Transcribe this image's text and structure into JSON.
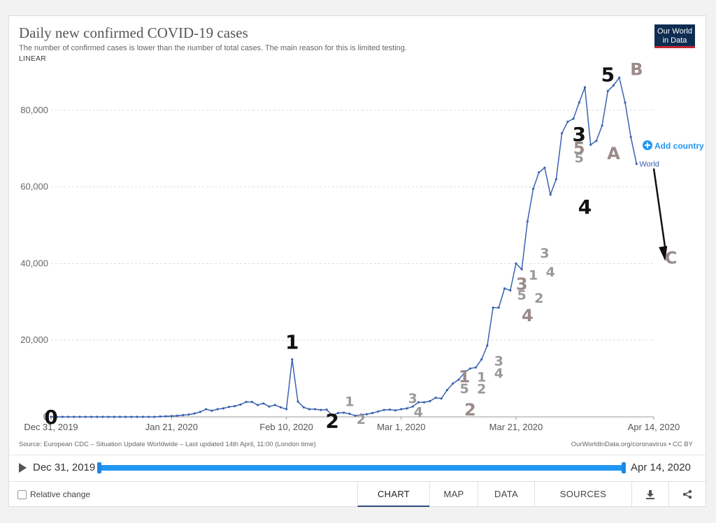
{
  "title": "Daily new confirmed COVID-19 cases",
  "subtitle": "The number of confirmed cases is lower than the number of total cases. The main reason for this is limited testing.",
  "scale_label": "LINEAR",
  "logo": {
    "line1": "Our World",
    "line2": "in Data"
  },
  "add_country_label": "Add country",
  "source": "Source: European CDC – Situation Update Worldwide – Last updated 14th April, 11:00 (London time)",
  "credit": "OurWorldInData.org/coronavirus • CC BY",
  "timeline": {
    "start": "Dec 31, 2019",
    "end": "Apr 14, 2020"
  },
  "relative_change_label": "Relative change",
  "tabs": [
    {
      "label": "CHART",
      "active": true
    },
    {
      "label": "MAP",
      "active": false
    },
    {
      "label": "DATA",
      "active": false
    },
    {
      "label": "SOURCES",
      "active": false
    }
  ],
  "icons": {
    "download": "download-icon",
    "share": "share-icon",
    "add": "plus-circle-icon",
    "play": "play-icon"
  },
  "colors": {
    "line": "#3a62b0",
    "add": "#2196f3",
    "black_label": "#111111",
    "gray_label": "#999999",
    "mauve_label": "#9a8a8a"
  },
  "chart_data": {
    "type": "line",
    "x_start": "2019-12-31",
    "x_end": "2020-04-14",
    "y_range": [
      0,
      90000
    ],
    "y_ticks": [
      0,
      20000,
      40000,
      60000,
      80000
    ],
    "y_tick_labels": [
      "0",
      "20,000",
      "40,000",
      "60,000",
      "80,000"
    ],
    "x_tick_labels": [
      "Dec 31, 2019",
      "Jan 21, 2020",
      "Feb 10, 2020",
      "Mar 1, 2020",
      "Mar 21, 2020",
      "Apr 14, 2020"
    ],
    "grid": true,
    "series": [
      {
        "name": "World",
        "values": [
          0,
          0,
          0,
          0,
          0,
          0,
          0,
          0,
          0,
          0,
          0,
          0,
          0,
          0,
          0,
          0,
          0,
          0,
          0,
          100,
          150,
          200,
          300,
          450,
          600,
          900,
          1300,
          2000,
          1600,
          2000,
          2200,
          2600,
          2800,
          3200,
          3900,
          3900,
          3100,
          3500,
          2700,
          3100,
          2500,
          2000,
          15000,
          4000,
          2500,
          2000,
          2000,
          1800,
          1900,
          400,
          1000,
          1100,
          800,
          300,
          600,
          700,
          1000,
          1400,
          1800,
          1900,
          1700,
          2000,
          2200,
          2700,
          3800,
          3800,
          4100,
          5000,
          4800,
          7000,
          8700,
          9700,
          11500,
          12600,
          12900,
          15000,
          18600,
          28500,
          28500,
          33500,
          33000,
          40000,
          38500,
          51000,
          59500,
          63800,
          65000,
          58000,
          62000,
          74000,
          77000,
          77800,
          82000,
          86000,
          71000,
          72000,
          76000,
          85000,
          86500,
          88500,
          82000,
          73000,
          66000
        ]
      }
    ],
    "annotations": [
      {
        "text": "0",
        "x": "2019-12-31",
        "y": -1800,
        "color": "black",
        "size": "large"
      },
      {
        "text": "1",
        "x": "2020-02-11",
        "y": 17800,
        "color": "black",
        "size": "large"
      },
      {
        "text": "2",
        "x": "2020-02-18",
        "y": -2800,
        "color": "black",
        "size": "large"
      },
      {
        "text": "1",
        "x": "2020-02-21",
        "y": 2800,
        "color": "gray",
        "size": "small"
      },
      {
        "text": "2",
        "x": "2020-02-23",
        "y": -1800,
        "color": "gray",
        "size": "small"
      },
      {
        "text": "3",
        "x": "2020-03-03",
        "y": 3600,
        "color": "gray",
        "size": "small"
      },
      {
        "text": "4",
        "x": "2020-03-04",
        "y": 100,
        "color": "gray",
        "size": "small"
      },
      {
        "text": "1",
        "x": "2020-03-12",
        "y": 9000,
        "color": "mauve",
        "size": "medium"
      },
      {
        "text": "5",
        "x": "2020-03-12",
        "y": 6200,
        "color": "gray",
        "size": "small"
      },
      {
        "text": "2",
        "x": "2020-03-13",
        "y": 400,
        "color": "mauve",
        "size": "medium"
      },
      {
        "text": "1",
        "x": "2020-03-15",
        "y": 9200,
        "color": "gray",
        "size": "small"
      },
      {
        "text": "2",
        "x": "2020-03-15",
        "y": 6100,
        "color": "gray",
        "size": "small"
      },
      {
        "text": "3",
        "x": "2020-03-18",
        "y": 13400,
        "color": "gray",
        "size": "small"
      },
      {
        "text": "4",
        "x": "2020-03-18",
        "y": 10200,
        "color": "gray",
        "size": "small"
      },
      {
        "text": "3",
        "x": "2020-03-22",
        "y": 33200,
        "color": "mauve",
        "size": "medium"
      },
      {
        "text": "5",
        "x": "2020-03-22",
        "y": 30600,
        "color": "gray",
        "size": "small"
      },
      {
        "text": "4",
        "x": "2020-03-23",
        "y": 25000,
        "color": "mauve",
        "size": "medium"
      },
      {
        "text": "1",
        "x": "2020-03-24",
        "y": 35800,
        "color": "gray",
        "size": "small"
      },
      {
        "text": "2",
        "x": "2020-03-25",
        "y": 29800,
        "color": "gray",
        "size": "small"
      },
      {
        "text": "3",
        "x": "2020-03-26",
        "y": 41500,
        "color": "gray",
        "size": "small"
      },
      {
        "text": "4",
        "x": "2020-03-27",
        "y": 36600,
        "color": "gray",
        "size": "small"
      },
      {
        "text": "3",
        "x": "2020-04-01",
        "y": 72000,
        "color": "black",
        "size": "large"
      },
      {
        "text": "5",
        "x": "2020-04-01",
        "y": 68600,
        "color": "mauve",
        "size": "medium"
      },
      {
        "text": "5",
        "x": "2020-04-01",
        "y": 66400,
        "color": "gray",
        "size": "small"
      },
      {
        "text": "4",
        "x": "2020-04-02",
        "y": 53000,
        "color": "black",
        "size": "large"
      },
      {
        "text": "5",
        "x": "2020-04-06",
        "y": 87500,
        "color": "black",
        "size": "large"
      },
      {
        "text": "A",
        "x": "2020-04-07",
        "y": 67200,
        "color": "mauve",
        "size": "medium"
      },
      {
        "text": "B",
        "x": "2020-04-11",
        "y": 89200,
        "color": "mauve",
        "size": "medium"
      },
      {
        "text": "C",
        "x": "2020-04-17",
        "y": 40000,
        "color": "mauve",
        "size": "medium"
      }
    ],
    "arrow": {
      "from": {
        "x": "2020-04-14",
        "y": 64800
      },
      "to": {
        "x": "2020-04-16",
        "y": 45000
      }
    },
    "legend_label": "World"
  }
}
